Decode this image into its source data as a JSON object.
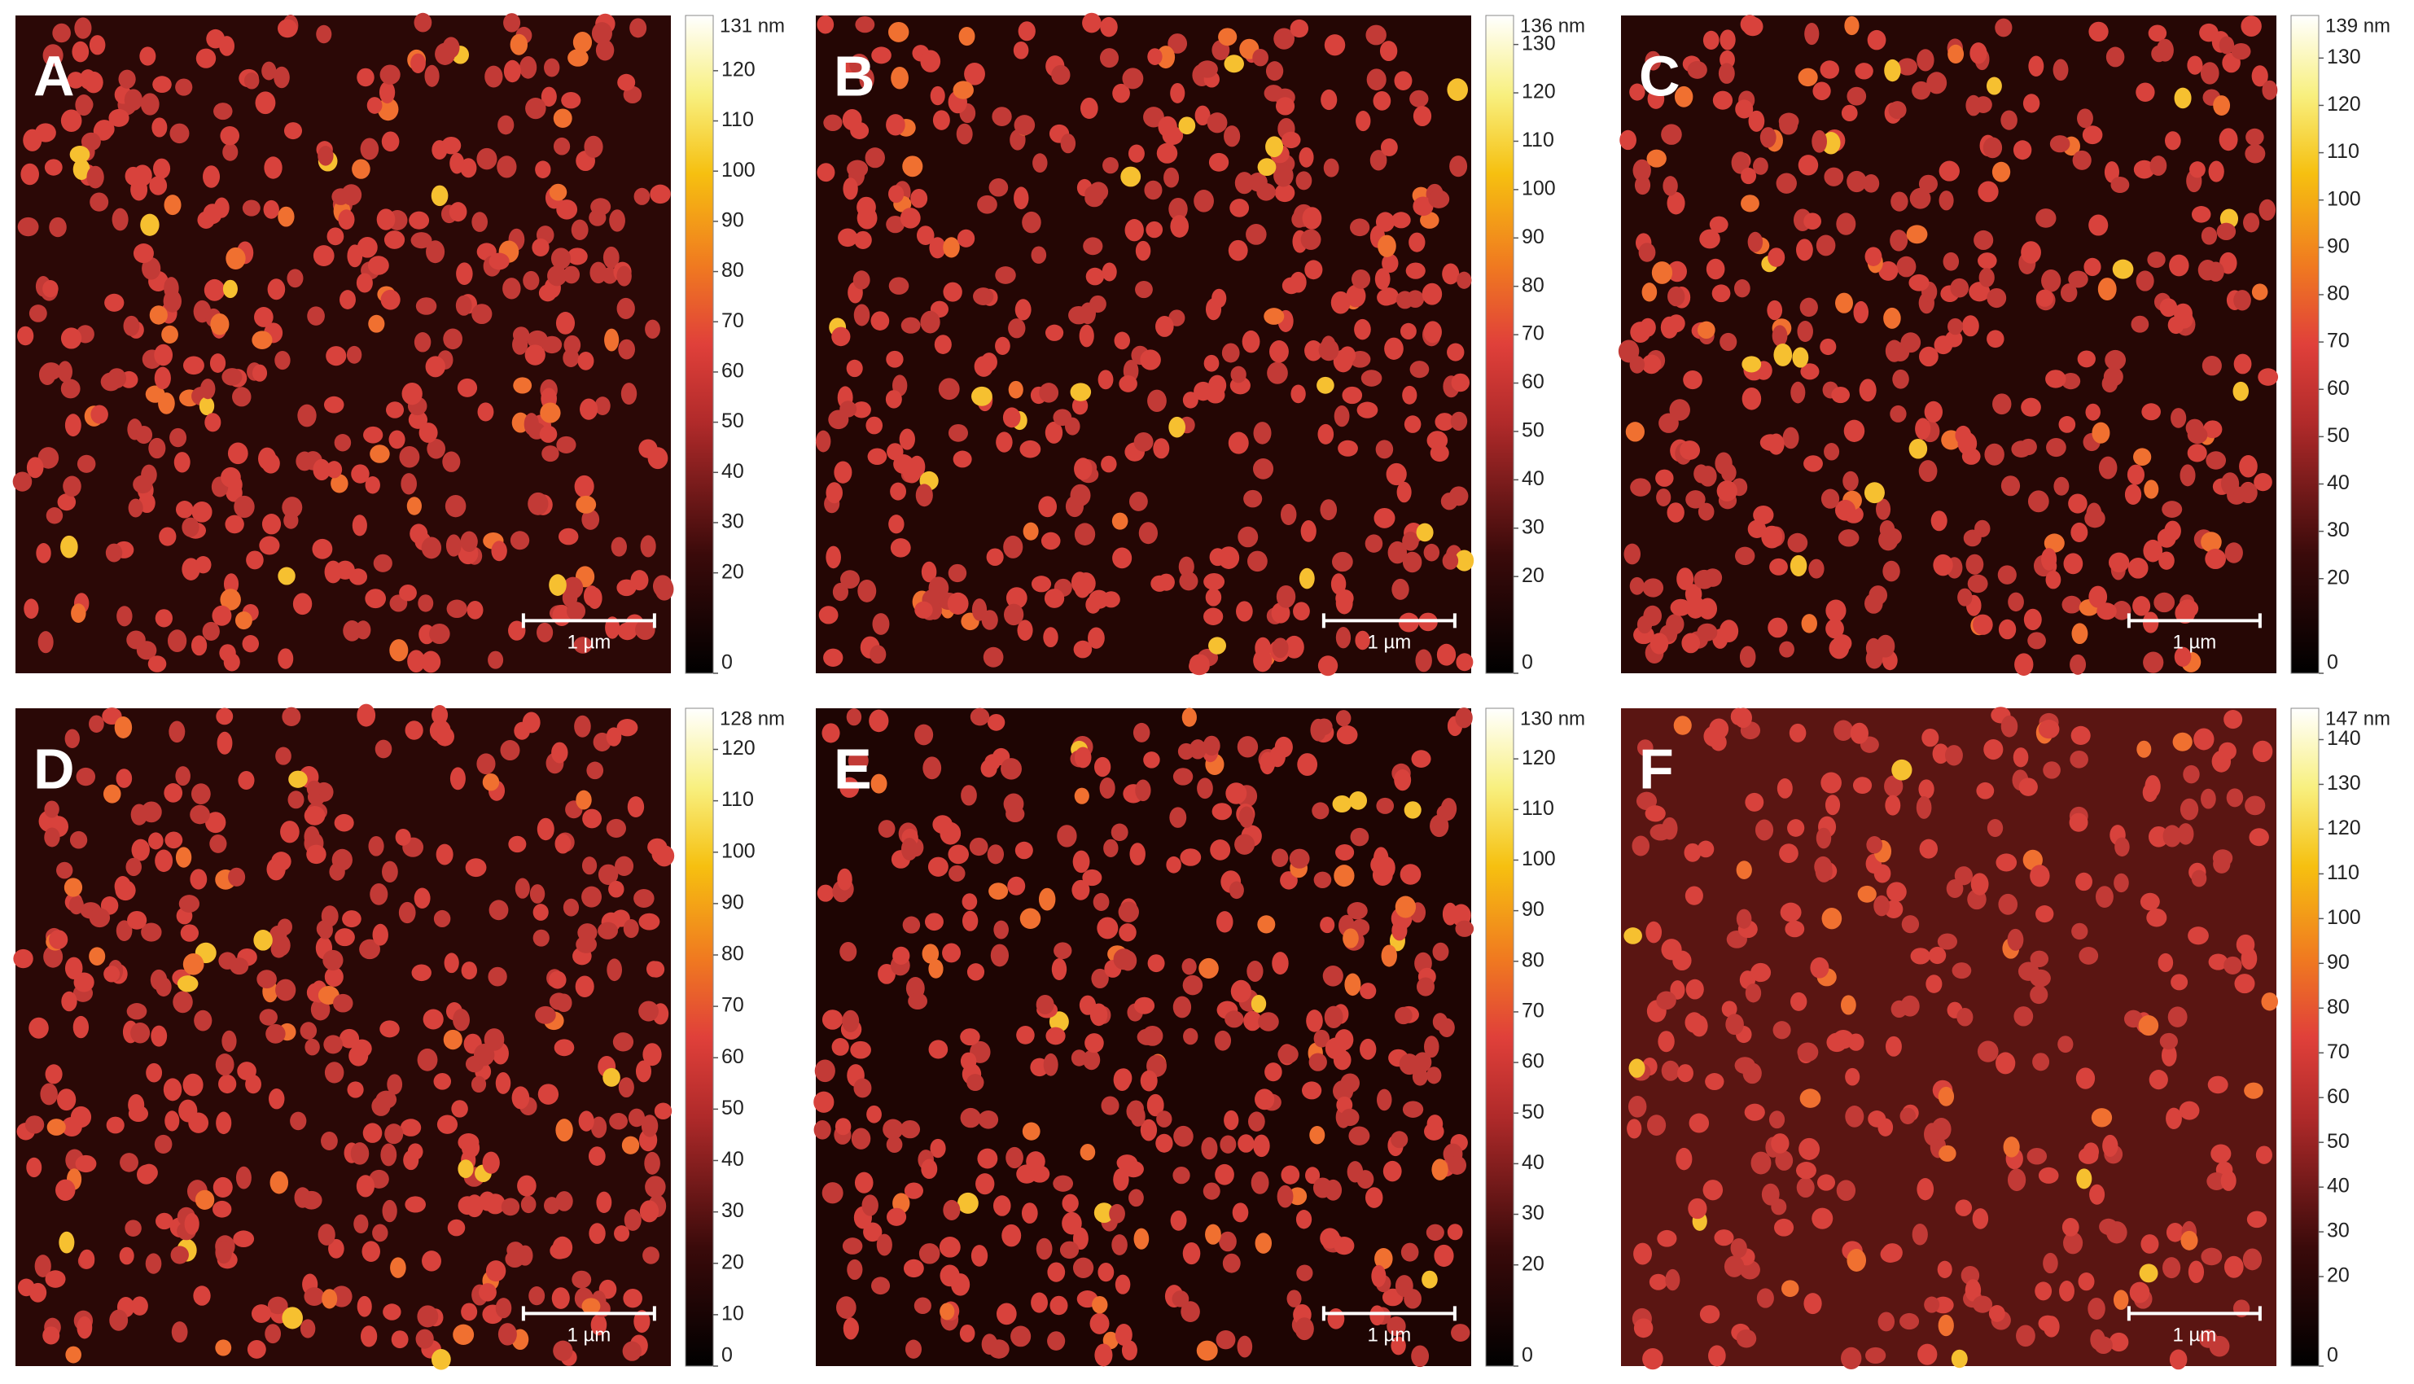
{
  "panels": [
    {
      "label": "A",
      "scale_bar": "1 µm",
      "colorbar": {
        "max_label": "131 nm",
        "zlim": [
          0,
          131
        ],
        "ticks": [
          0,
          20,
          30,
          40,
          50,
          60,
          70,
          80,
          90,
          100,
          110,
          120
        ]
      }
    },
    {
      "label": "B",
      "scale_bar": "1 µm",
      "colorbar": {
        "max_label": "136 nm",
        "zlim": [
          0,
          136
        ],
        "ticks": [
          0,
          20,
          30,
          40,
          50,
          60,
          70,
          80,
          90,
          100,
          110,
          120,
          130
        ]
      }
    },
    {
      "label": "C",
      "scale_bar": "1 µm",
      "colorbar": {
        "max_label": "139 nm",
        "zlim": [
          0,
          139
        ],
        "ticks": [
          0,
          20,
          30,
          40,
          50,
          60,
          70,
          80,
          90,
          100,
          110,
          120,
          130
        ]
      }
    },
    {
      "label": "D",
      "scale_bar": "1 µm",
      "colorbar": {
        "max_label": "128 nm",
        "zlim": [
          0,
          128
        ],
        "ticks": [
          0,
          10,
          20,
          30,
          40,
          50,
          60,
          70,
          80,
          90,
          100,
          110,
          120
        ]
      }
    },
    {
      "label": "E",
      "scale_bar": "1 µm",
      "colorbar": {
        "max_label": "130 nm",
        "zlim": [
          0,
          130
        ],
        "ticks": [
          0,
          20,
          30,
          40,
          50,
          60,
          70,
          80,
          90,
          100,
          110,
          120
        ]
      }
    },
    {
      "label": "F",
      "scale_bar": "1 µm",
      "colorbar": {
        "max_label": "147 nm",
        "zlim": [
          0,
          147
        ],
        "ticks": [
          0,
          20,
          30,
          40,
          50,
          60,
          70,
          80,
          90,
          100,
          110,
          120,
          130,
          140
        ]
      }
    }
  ]
}
